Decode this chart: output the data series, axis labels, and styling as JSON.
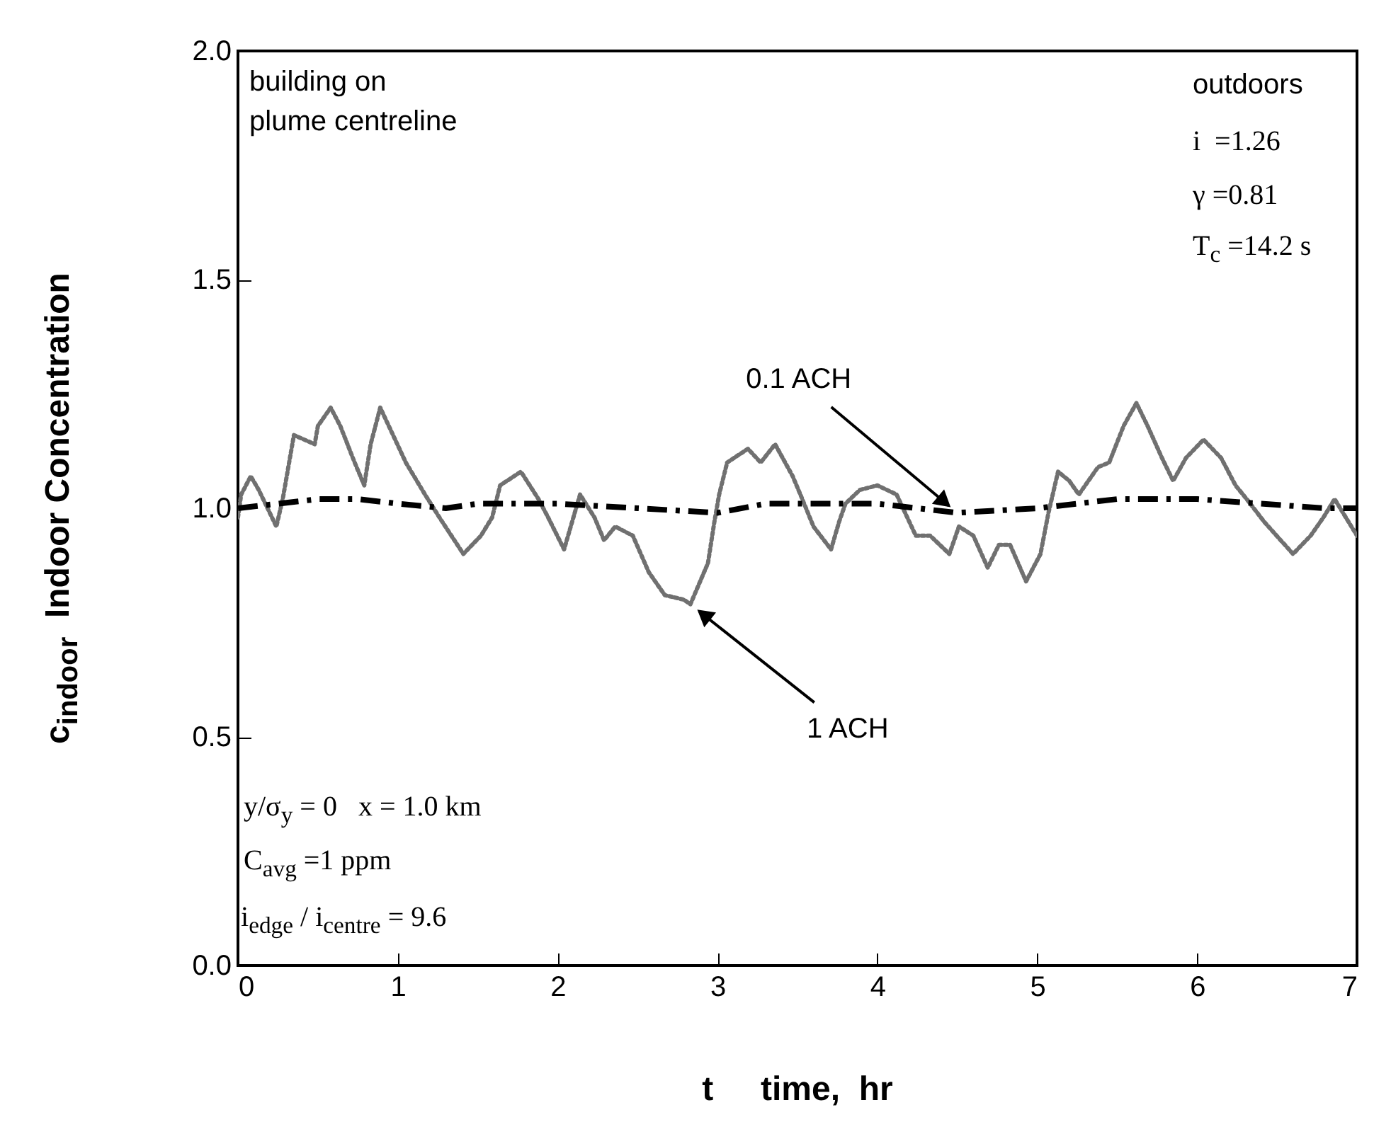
{
  "chart_data": {
    "type": "line",
    "xlabel": "t     time,  hr",
    "ylabel": "c$_{indoor}$  Indoor Concentration",
    "xlim": [
      0,
      7
    ],
    "xticks": [
      0,
      1,
      2,
      3,
      4,
      5,
      6,
      7
    ],
    "ylim": [
      0,
      2
    ],
    "yticks": [
      {
        "value": 0,
        "label": "0.0"
      },
      {
        "value": 0.5,
        "label": "0.5"
      },
      {
        "value": 1,
        "label": "1.0"
      },
      {
        "value": 1.5,
        "label": "1.5"
      },
      {
        "value": 2,
        "label": "2.0"
      }
    ],
    "grid": false,
    "series": [
      {
        "color": "#707070",
        "line_style": "dotted",
        "x": [
          0,
          0.02,
          0.08,
          0.13,
          0.24,
          0.28,
          0.3,
          0.35,
          0.48,
          0.5,
          0.58,
          0.64,
          0.73,
          0.79,
          0.83,
          0.89,
          0.97,
          1.05,
          1.17,
          1.26,
          1.41,
          1.52,
          1.59,
          1.64,
          1.77,
          1.88,
          1.94,
          2.04,
          2.14,
          2.23,
          2.29,
          2.36,
          2.47,
          2.57,
          2.67,
          2.79,
          2.83,
          2.94,
          2.98,
          3.01,
          3.06,
          3.19,
          3.27,
          3.36,
          3.47,
          3.53,
          3.6,
          3.71,
          3.76,
          3.8,
          3.89,
          4.0,
          4.12,
          4.24,
          4.33,
          4.45,
          4.51,
          4.6,
          4.69,
          4.76,
          4.83,
          4.93,
          5.02,
          5.07,
          5.13,
          5.2,
          5.26,
          5.38,
          5.45,
          5.54,
          5.62,
          5.69,
          5.78,
          5.85,
          5.93,
          6.04,
          6.15,
          6.24,
          6.31,
          6.42,
          6.6,
          6.71,
          6.79,
          6.86,
          7.0
        ],
        "values": [
          0.98,
          1.03,
          1.07,
          1.04,
          0.96,
          1.02,
          1.06,
          1.16,
          1.14,
          1.18,
          1.22,
          1.18,
          1.1,
          1.05,
          1.14,
          1.22,
          1.16,
          1.1,
          1.03,
          0.98,
          0.9,
          0.94,
          0.98,
          1.05,
          1.08,
          1.02,
          0.98,
          0.91,
          1.03,
          0.98,
          0.93,
          0.96,
          0.94,
          0.86,
          0.81,
          0.8,
          0.79,
          0.88,
          0.97,
          1.03,
          1.1,
          1.13,
          1.1,
          1.14,
          1.07,
          1.02,
          0.96,
          0.91,
          0.97,
          1.01,
          1.04,
          1.05,
          1.03,
          0.94,
          0.94,
          0.9,
          0.96,
          0.94,
          0.87,
          0.92,
          0.92,
          0.84,
          0.9,
          0.99,
          1.08,
          1.06,
          1.03,
          1.09,
          1.1,
          1.18,
          1.23,
          1.18,
          1.11,
          1.06,
          1.11,
          1.15,
          1.11,
          1.05,
          1.02,
          0.97,
          0.9,
          0.94,
          0.98,
          1.02,
          0.94
        ]
      },
      {
        "color": "#000000",
        "line_style": "dashed",
        "x": [
          0,
          0.25,
          0.5,
          0.75,
          1.0,
          1.3,
          1.5,
          2.0,
          2.5,
          3.0,
          3.3,
          3.7,
          4.0,
          4.5,
          5.0,
          5.5,
          6.0,
          6.4,
          6.8,
          7.0
        ],
        "values": [
          1.0,
          1.01,
          1.02,
          1.02,
          1.01,
          1.0,
          1.01,
          1.01,
          1.0,
          0.99,
          1.01,
          1.01,
          1.01,
          0.99,
          1.0,
          1.02,
          1.02,
          1.01,
          1.0,
          1.0
        ]
      }
    ],
    "annotations": [
      "building on\nplume centreline",
      "outdoors",
      "i  =1.26",
      "γ =0.81",
      "T$_{c}$ =14.2 s",
      "y/σ$_{y}$ = 0   x = 1.0 km",
      "C$_{avg}$ =1 ppm",
      "i$_{edge}$ / i$_{centre}$ = 9.6",
      {
        "text": "0.1 ACH",
        "x": 4.5,
        "y": 0.99
      },
      {
        "text": "1 ACH",
        "x": 2.83,
        "y": 0.79
      }
    ]
  }
}
